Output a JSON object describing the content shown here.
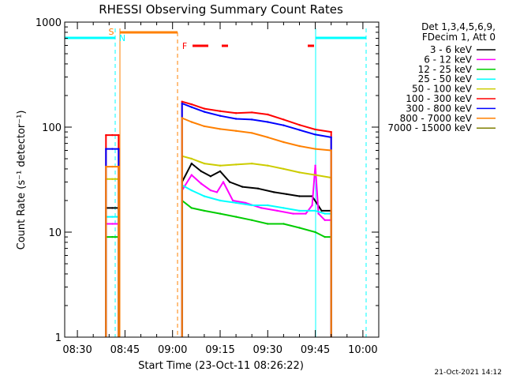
{
  "chart_data": {
    "type": "line",
    "title": "RHESSI Observing Summary Count Rates",
    "xlabel": "Start Time (23-Oct-11 08:26:22)",
    "ylabel": "Count Rate (s⁻¹ detector⁻¹)",
    "yscale": "log",
    "ylim": [
      1,
      1000
    ],
    "xlim_minutes_after_0826": [
      0,
      99
    ],
    "x_ticks": [
      "08:30",
      "08:45",
      "09:00",
      "09:15",
      "09:30",
      "09:45",
      "10:00"
    ],
    "y_ticks": [
      "1",
      "10",
      "100",
      "1000"
    ],
    "legend_header": [
      "Det 1,3,4,5,6,9,",
      "FDecim 1, Att 0"
    ],
    "legend_position": "right, outside plot",
    "grid": false,
    "annotations": [
      "S",
      "N",
      "F"
    ],
    "footer": "21-Oct-2021 14:12",
    "series": [
      {
        "name": "3 - 6 keV",
        "color": "#000000",
        "x": [
          "08:39",
          "08:41",
          "08:43",
          "09:03",
          "09:06",
          "09:09",
          "09:12",
          "09:15",
          "09:18",
          "09:22",
          "09:27",
          "09:32",
          "09:36",
          "09:40",
          "09:44",
          "09:47",
          "09:50"
        ],
        "values": [
          17,
          17,
          17,
          30,
          45,
          38,
          34,
          38,
          30,
          27,
          26,
          24,
          23,
          22,
          22,
          16,
          16
        ]
      },
      {
        "name": "6 - 12 keV",
        "color": "#ff00ff",
        "x": [
          "08:39",
          "08:41",
          "08:43",
          "09:03",
          "09:06",
          "09:09",
          "09:12",
          "09:14",
          "09:16",
          "09:19",
          "09:23",
          "09:28",
          "09:33",
          "09:38",
          "09:42",
          "09:44",
          "09:45",
          "09:46",
          "09:48",
          "09:50"
        ],
        "values": [
          12,
          12,
          12,
          25,
          35,
          29,
          25,
          24,
          30,
          20,
          19,
          17,
          16,
          15,
          15,
          18,
          43,
          15,
          13,
          13
        ]
      },
      {
        "name": "12 - 25 keV",
        "color": "#00cc00",
        "x": [
          "08:39",
          "08:41",
          "08:43",
          "09:03",
          "09:06",
          "09:10",
          "09:15",
          "09:20",
          "09:25",
          "09:30",
          "09:35",
          "09:40",
          "09:45",
          "09:48",
          "09:50"
        ],
        "values": [
          9,
          9,
          9,
          20,
          17,
          16,
          15,
          14,
          13,
          12,
          12,
          11,
          10,
          9,
          9
        ]
      },
      {
        "name": "25 - 50 keV",
        "color": "#00ffff",
        "x": [
          "08:39",
          "08:41",
          "08:43",
          "09:03",
          "09:06",
          "09:10",
          "09:15",
          "09:20",
          "09:25",
          "09:30",
          "09:35",
          "09:40",
          "09:45",
          "09:48",
          "09:50"
        ],
        "values": [
          14,
          14,
          14,
          28,
          25,
          22,
          20,
          19,
          18,
          18,
          17,
          16,
          16,
          15,
          15
        ]
      },
      {
        "name": "50 - 100 keV",
        "color": "#cccc00",
        "x": [
          "08:39",
          "08:41",
          "08:43",
          "09:03",
          "09:06",
          "09:10",
          "09:15",
          "09:20",
          "09:25",
          "09:30",
          "09:35",
          "09:40",
          "09:45",
          "09:50"
        ],
        "values": [
          32,
          32,
          32,
          53,
          50,
          45,
          43,
          44,
          45,
          43,
          40,
          37,
          35,
          33
        ]
      },
      {
        "name": "100 - 300 keV",
        "color": "#ff0000",
        "x": [
          "08:39",
          "08:41",
          "08:43",
          "09:03",
          "09:06",
          "09:10",
          "09:15",
          "09:20",
          "09:25",
          "09:30",
          "09:35",
          "09:40",
          "09:45",
          "09:50"
        ],
        "values": [
          84,
          84,
          84,
          175,
          165,
          150,
          142,
          136,
          138,
          132,
          118,
          105,
          95,
          90
        ]
      },
      {
        "name": "300 - 800 keV",
        "color": "#0000ff",
        "x": [
          "08:39",
          "08:41",
          "08:43",
          "09:03",
          "09:06",
          "09:10",
          "09:15",
          "09:20",
          "09:25",
          "09:30",
          "09:35",
          "09:40",
          "09:45",
          "09:50"
        ],
        "values": [
          62,
          62,
          62,
          168,
          155,
          140,
          128,
          120,
          118,
          112,
          104,
          94,
          85,
          80
        ]
      },
      {
        "name": "800 - 7000 keV",
        "color": "#ff8000",
        "x": [
          "08:39",
          "08:41",
          "08:43",
          "09:03",
          "09:06",
          "09:10",
          "09:15",
          "09:20",
          "09:25",
          "09:30",
          "09:35",
          "09:40",
          "09:45",
          "09:50"
        ],
        "values": [
          42,
          42,
          42,
          122,
          112,
          102,
          96,
          92,
          88,
          80,
          72,
          66,
          62,
          60
        ]
      },
      {
        "name": "7000 - 15000 keV",
        "color": "#808000",
        "x": [],
        "values": []
      }
    ]
  }
}
